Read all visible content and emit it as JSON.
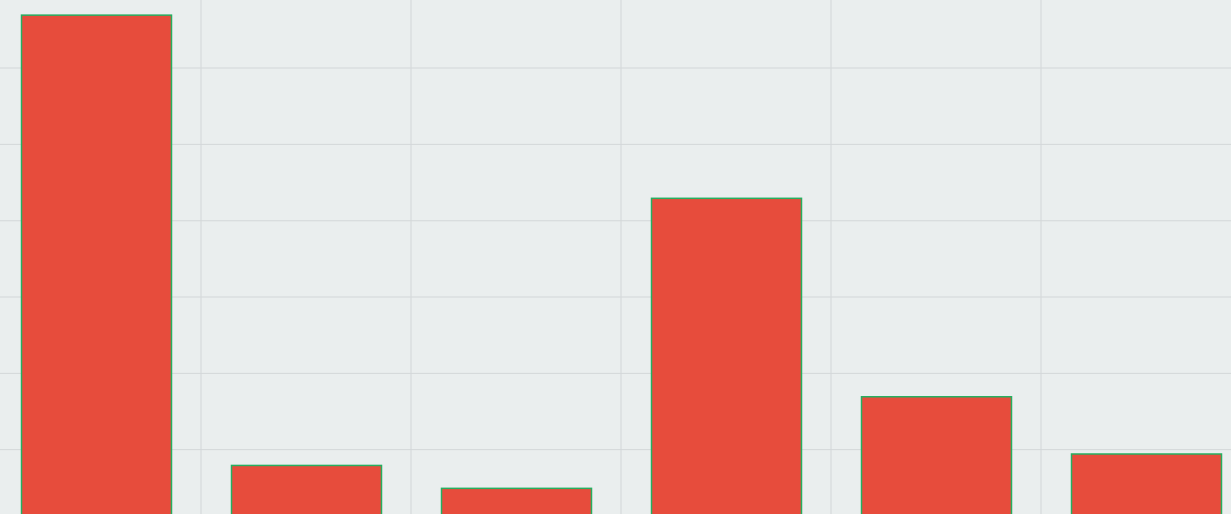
{
  "chart_data": {
    "type": "bar",
    "categories": [
      "",
      "",
      "",
      "",
      "",
      ""
    ],
    "values": [
      6.7,
      0.8,
      0.5,
      4.3,
      1.7,
      0.95
    ],
    "ylim": [
      0,
      6.8
    ],
    "y_gridlines": [
      1,
      2,
      3,
      4,
      5,
      6
    ],
    "grid": true,
    "bar_color": "#e74c3c",
    "bar_edge_color": "#27ae60",
    "background_color": "#eaeeee",
    "grid_color": "#d3d7d8"
  }
}
